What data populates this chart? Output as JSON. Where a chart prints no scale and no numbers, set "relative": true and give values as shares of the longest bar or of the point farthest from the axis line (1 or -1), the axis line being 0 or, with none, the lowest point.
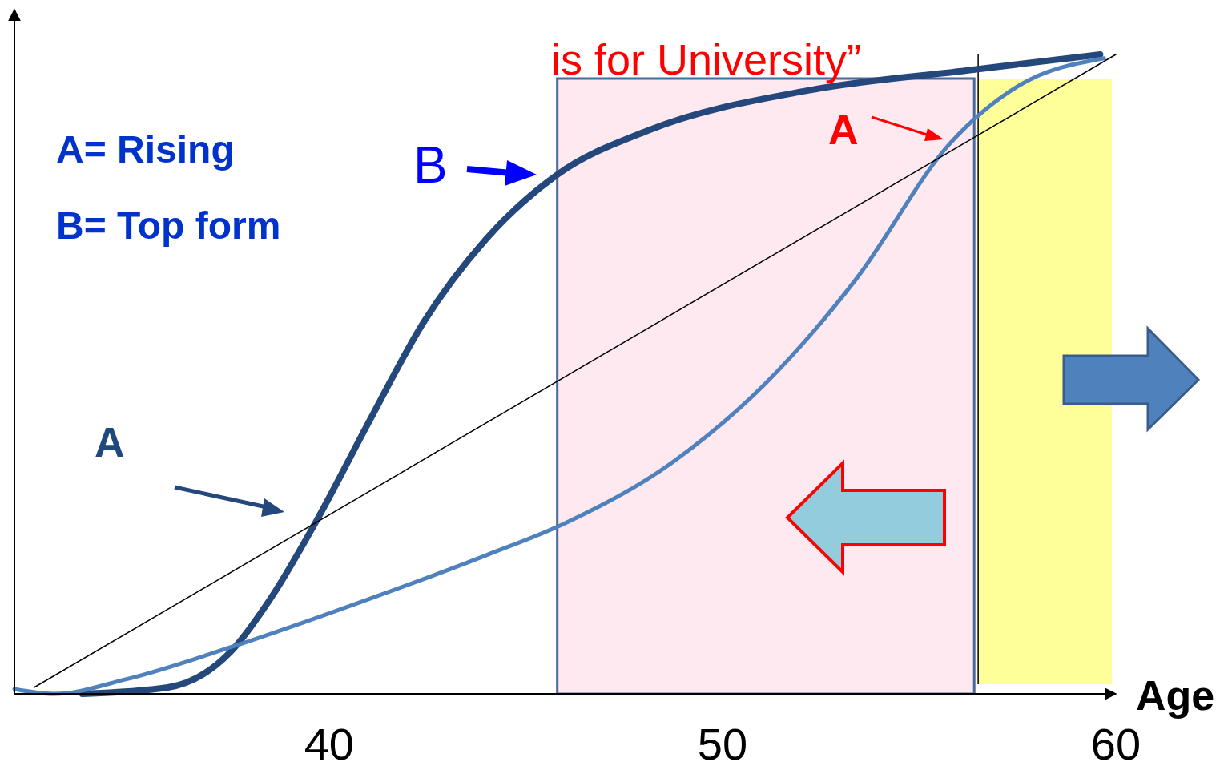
{
  "chart_data": {
    "type": "line",
    "relative": true,
    "xlabel": "Age",
    "xlim": [
      32,
      60
    ],
    "xticks": [
      40,
      50,
      60
    ],
    "line_style": "solid",
    "series": [
      {
        "color": "#24487c",
        "x": [
          33.73,
          35.9,
          37.5,
          38.5,
          39.7,
          41.0,
          42.4,
          44.0,
          45.8,
          48.1,
          52.2,
          56.2,
          59.6
        ],
        "values": [
          0,
          0.01,
          0.066,
          0.148,
          0.273,
          0.424,
          0.581,
          0.712,
          0.812,
          0.881,
          0.944,
          0.975,
          1.0
        ]
      },
      {
        "color": "#4f81bd",
        "x": [
          32,
          33.0,
          34.85,
          37.5,
          41.0,
          44.0,
          46.0,
          48.7,
          51.1,
          53.4,
          55.8,
          57.5,
          59.7
        ],
        "values": [
          0.0075,
          0,
          0.023,
          0.073,
          0.148,
          0.217,
          0.267,
          0.361,
          0.486,
          0.649,
          0.862,
          0.95,
          0.994
        ]
      },
      {
        "color": "#000000",
        "x": [
          32.5,
          60
        ],
        "values": [
          0.01,
          1.0
        ]
      }
    ],
    "bands": [
      {
        "axis": "x",
        "from": 45.8,
        "to": 56.4,
        "color": "#fde9ef"
      },
      {
        "axis": "x",
        "from": 56.5,
        "to": 59.9,
        "color": "#ffff99"
      }
    ],
    "ref_lines": [
      {
        "axis": "x",
        "value": 56.5,
        "color": "#000000"
      }
    ],
    "annotations": [
      "is for University”",
      "A= Rising",
      "B= Top form",
      "B",
      "A",
      "A"
    ]
  }
}
